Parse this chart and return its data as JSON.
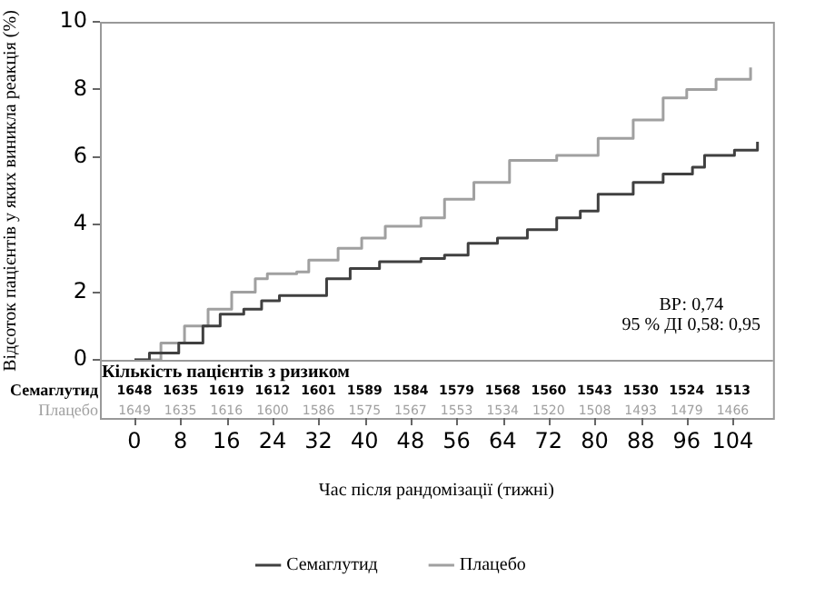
{
  "chart_data": {
    "type": "step",
    "xlabel": "Час після рандомізації (тижні)",
    "ylabel": "Відсоток пацієнтів у яких виникла реакція (%)",
    "xlim": [
      -6,
      111
    ],
    "xticks": [
      0,
      8,
      16,
      24,
      32,
      40,
      48,
      56,
      64,
      72,
      80,
      88,
      96,
      104
    ],
    "ylim": [
      0,
      10
    ],
    "yticks": [
      0,
      2,
      4,
      6,
      8,
      10
    ],
    "grid": false,
    "legend": "bottom",
    "marker": "none",
    "line_style": "solid",
    "series": [
      {
        "name": "Семаглутид",
        "color": "#404040",
        "x": [
          0,
          2.6,
          7.7,
          11.9,
          14.9,
          19,
          22.1,
          25.2,
          29.3,
          33.4,
          37.5,
          42.6,
          49.8,
          53.9,
          58,
          63.1,
          68.3,
          73.4,
          77.5,
          80.6,
          86.7,
          91.9,
          97,
          99.1,
          104.3,
          108.3
        ],
        "values": [
          0,
          0.2,
          0.5,
          1.0,
          1.35,
          1.5,
          1.75,
          1.9,
          1.9,
          2.4,
          2.7,
          2.9,
          3.0,
          3.1,
          3.45,
          3.6,
          3.85,
          4.2,
          4.4,
          4.9,
          5.25,
          5.5,
          5.7,
          6.05,
          6.2,
          6.45
        ]
      },
      {
        "name": "Плацебо",
        "color": "#a0a0a0",
        "x": [
          0,
          4.6,
          8.7,
          12.8,
          16.9,
          21,
          23.1,
          28.2,
          30.3,
          35.4,
          39.5,
          43.6,
          49.8,
          53.9,
          59,
          65.2,
          73.4,
          77.5,
          80.6,
          86.7,
          91.9,
          96,
          101.1,
          107.1
        ],
        "values": [
          0,
          0.5,
          1.0,
          1.5,
          2.0,
          2.4,
          2.55,
          2.6,
          2.95,
          3.3,
          3.6,
          3.95,
          4.2,
          4.75,
          5.25,
          5.9,
          6.05,
          6.05,
          6.55,
          7.1,
          7.75,
          8.0,
          8.3,
          8.65
        ]
      }
    ],
    "annotations": [
      "ВР: 0,74",
      "95 % ДІ 0,58: 0,95",
      "Кількість пацієнтів з ризиком",
      "1648",
      "1635",
      "1619",
      "1612",
      "1601",
      "1589",
      "1584",
      "1579",
      "1568",
      "1560",
      "1543",
      "1530",
      "1524",
      "1513",
      "1649",
      "1635",
      "1616",
      "1600",
      "1586",
      "1575",
      "1567",
      "1553",
      "1534",
      "1520",
      "1508",
      "1493",
      "1479",
      "1466"
    ]
  }
}
